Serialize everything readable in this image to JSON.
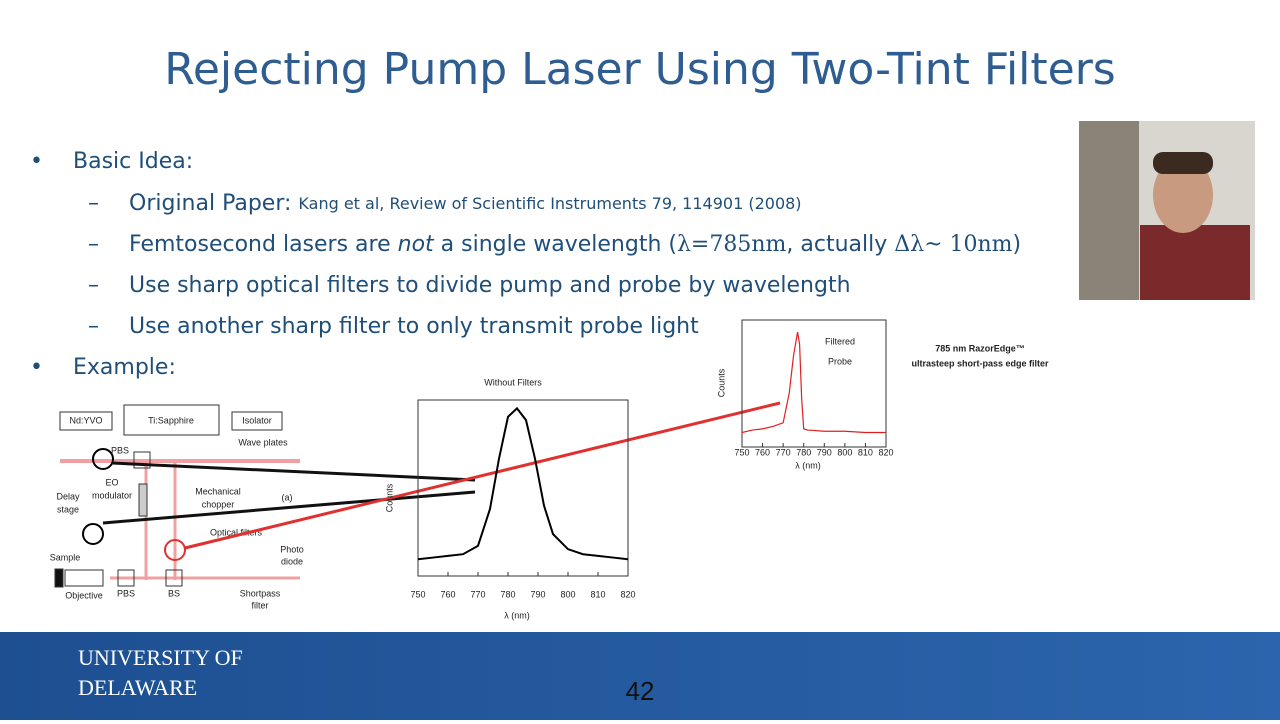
{
  "header": {
    "title": "Rejecting Pump Laser Using Two-Tint Filters"
  },
  "bullets": [
    {
      "text": "Basic Idea:",
      "sub": [
        {
          "label": "Original Paper:",
          "citation": "Kang et al, Review of Scientific Instruments 79, 114901 (2008)"
        },
        {
          "pre": "Femtosecond lasers are ",
          "em": "not",
          "post": " a single wavelength (",
          "math1": "λ=785nm",
          "mid": ", actually ",
          "math2": "Δλ~ 10nm",
          "end": ")"
        },
        {
          "text": "Use sharp optical filters to divide pump and probe by wavelength"
        },
        {
          "text": "Use another sharp filter to only transmit probe light"
        }
      ]
    },
    {
      "text": "Example:"
    }
  ],
  "diagram": {
    "labels": [
      "Nd:YVO",
      "Ti:Sapphire",
      "Isolator",
      "Wave plates",
      "PBS",
      "EO",
      "modulator",
      "Mechanical",
      "chopper",
      "(a)",
      "Delay",
      "stage",
      "Optical filters",
      "Sample",
      "Objective",
      "PBS",
      "BS",
      "Shortpass",
      "filter",
      "Photo",
      "diode"
    ]
  },
  "charts": [
    {
      "type": "line",
      "title": "Without Filters",
      "x_label": "λ (nm)",
      "y_label": "Counts",
      "color": "#000000",
      "x": [
        750,
        755,
        760,
        765,
        770,
        774,
        777,
        780,
        783,
        786,
        789,
        792,
        795,
        800,
        805,
        810,
        815,
        820
      ],
      "values": [
        0.1,
        0.11,
        0.12,
        0.13,
        0.18,
        0.4,
        0.7,
        0.95,
        1.0,
        0.93,
        0.7,
        0.42,
        0.25,
        0.16,
        0.13,
        0.12,
        0.11,
        0.1
      ],
      "xlim": [
        750,
        820
      ],
      "ylim": [
        0,
        1.05
      ],
      "xticks": [
        750,
        760,
        770,
        780,
        790,
        800,
        810,
        820
      ]
    },
    {
      "type": "line",
      "annotation": [
        "Filtered",
        "Probe"
      ],
      "x_label": "λ (nm)",
      "y_label": "Counts",
      "color": "#e02020",
      "x": [
        750,
        755,
        760,
        765,
        770,
        773,
        775,
        777,
        778,
        779,
        780,
        782,
        790,
        800,
        810,
        820
      ],
      "values": [
        0.12,
        0.14,
        0.15,
        0.17,
        0.2,
        0.45,
        0.75,
        0.95,
        0.85,
        0.4,
        0.15,
        0.14,
        0.13,
        0.13,
        0.12,
        0.12
      ],
      "xlim": [
        750,
        820
      ],
      "ylim": [
        0,
        1.05
      ],
      "xticks": [
        750,
        760,
        770,
        780,
        790,
        800,
        810,
        820
      ],
      "caption": [
        "785 nm RazorEdge™",
        "ultrasteep short-pass edge filter"
      ]
    }
  ],
  "footer": {
    "logo": [
      "UNIVERSITY OF",
      "DELAWARE"
    ],
    "page": "42"
  }
}
